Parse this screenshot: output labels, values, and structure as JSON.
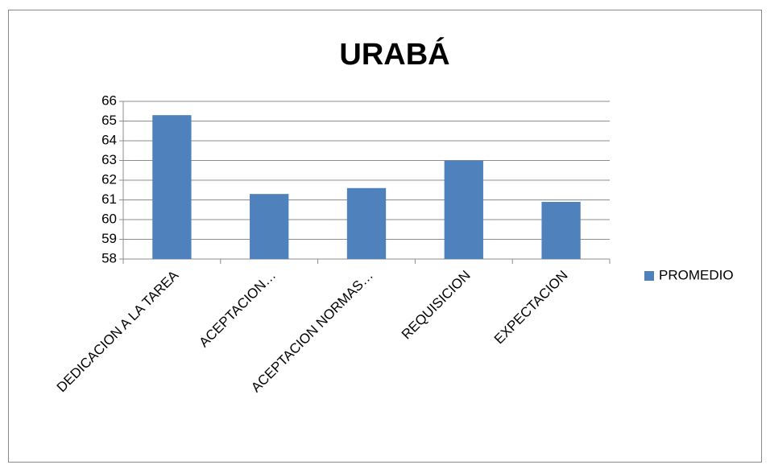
{
  "chart_data": {
    "type": "bar",
    "title": "URABÁ",
    "categories": [
      "DEDICACION A LA TAREA",
      "ACEPTACION…",
      "ACEPTACION NORMAS…",
      "REQUISICION",
      "EXPECTACION"
    ],
    "series": [
      {
        "name": "PROMEDIO",
        "color": "#4f81bd",
        "values": [
          65.3,
          61.3,
          61.6,
          63.0,
          60.9
        ]
      }
    ],
    "ylim": [
      58,
      66
    ],
    "yticks": [
      58,
      59,
      60,
      61,
      62,
      63,
      64,
      65,
      66
    ],
    "grid": true,
    "legend": "right"
  }
}
